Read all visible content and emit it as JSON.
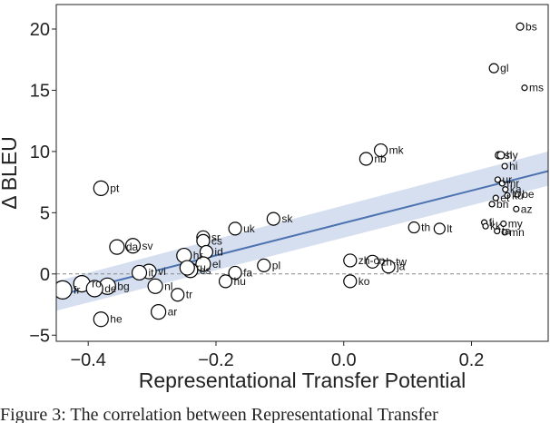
{
  "chart_data": {
    "type": "scatter",
    "title": "",
    "xlabel": "Representational Transfer Potential",
    "ylabel": "Δ BLEU",
    "xlim": [
      -0.45,
      0.32
    ],
    "ylim": [
      -5.5,
      22
    ],
    "xticks": [
      -0.4,
      -0.2,
      0.0,
      0.2
    ],
    "xtick_labels": [
      "−0.4",
      "−0.2",
      "0.0",
      "0.2"
    ],
    "yticks": [
      -5,
      0,
      5,
      10,
      15,
      20
    ],
    "ytick_labels": [
      "−5",
      "0",
      "5",
      "10",
      "15",
      "20"
    ],
    "grid": false,
    "zero_line": 0,
    "points": [
      {
        "label": "bs",
        "x": 0.276,
        "y": 20.2,
        "size": 4
      },
      {
        "label": "gl",
        "x": 0.235,
        "y": 16.8,
        "size": 5
      },
      {
        "label": "ms",
        "x": 0.283,
        "y": 15.2,
        "size": 3
      },
      {
        "label": "mk",
        "x": 0.058,
        "y": 10.1,
        "size": 7
      },
      {
        "label": "nb",
        "x": 0.035,
        "y": 9.4,
        "size": 7
      },
      {
        "label": "sl",
        "x": 0.243,
        "y": 9.7,
        "size": 4
      },
      {
        "label": "hy",
        "x": 0.246,
        "y": 9.7,
        "size": 4
      },
      {
        "label": "hi",
        "x": 0.252,
        "y": 8.8,
        "size": 3
      },
      {
        "label": "ur",
        "x": 0.241,
        "y": 7.7,
        "size": 3
      },
      {
        "label": "mr",
        "x": 0.248,
        "y": 7.4,
        "size": 3
      },
      {
        "label": "ka",
        "x": 0.253,
        "y": 6.9,
        "size": 3
      },
      {
        "label": "be",
        "x": 0.272,
        "y": 6.5,
        "size": 3
      },
      {
        "label": "ku",
        "x": 0.256,
        "y": 6.4,
        "size": 3
      },
      {
        "label": "et",
        "x": 0.238,
        "y": 6.2,
        "size": 3
      },
      {
        "label": "az",
        "x": 0.27,
        "y": 5.3,
        "size": 3
      },
      {
        "label": "bn",
        "x": 0.232,
        "y": 5.7,
        "size": 3
      },
      {
        "label": "fi",
        "x": 0.22,
        "y": 4.2,
        "size": 3
      },
      {
        "label": "kk",
        "x": 0.222,
        "y": 3.9,
        "size": 3
      },
      {
        "label": "my",
        "x": 0.25,
        "y": 4.1,
        "size": 3
      },
      {
        "label": "ta",
        "x": 0.24,
        "y": 3.5,
        "size": 3
      },
      {
        "label": "mn",
        "x": 0.252,
        "y": 3.4,
        "size": 3
      },
      {
        "label": "th",
        "x": 0.11,
        "y": 3.8,
        "size": 6
      },
      {
        "label": "lt",
        "x": 0.15,
        "y": 3.7,
        "size": 6
      },
      {
        "label": "zh-cn",
        "x": 0.01,
        "y": 1.1,
        "size": 7
      },
      {
        "label": "zh-tw",
        "x": 0.045,
        "y": 1.0,
        "size": 7
      },
      {
        "label": "ja",
        "x": 0.07,
        "y": 0.6,
        "size": 7
      },
      {
        "label": "ko",
        "x": 0.01,
        "y": -0.6,
        "size": 7
      },
      {
        "label": "pl",
        "x": -0.125,
        "y": 0.7,
        "size": 7
      },
      {
        "label": "sk",
        "x": -0.11,
        "y": 4.5,
        "size": 7
      },
      {
        "label": "uk",
        "x": -0.17,
        "y": 3.7,
        "size": 7
      },
      {
        "label": "fa",
        "x": -0.17,
        "y": 0.1,
        "size": 7
      },
      {
        "label": "hu",
        "x": -0.185,
        "y": -0.6,
        "size": 7
      },
      {
        "label": "sr",
        "x": -0.22,
        "y": 3.0,
        "size": 7
      },
      {
        "label": "cs",
        "x": -0.22,
        "y": 2.7,
        "size": 7
      },
      {
        "label": "id",
        "x": -0.215,
        "y": 1.8,
        "size": 7
      },
      {
        "label": "hr",
        "x": -0.25,
        "y": 1.5,
        "size": 8
      },
      {
        "label": "el",
        "x": -0.22,
        "y": 0.8,
        "size": 8
      },
      {
        "label": "es",
        "x": -0.24,
        "y": 0.3,
        "size": 8
      },
      {
        "label": "ru",
        "x": -0.245,
        "y": 0.5,
        "size": 8
      },
      {
        "label": "tr",
        "x": -0.26,
        "y": -1.7,
        "size": 7
      },
      {
        "label": "vi",
        "x": -0.305,
        "y": 0.2,
        "size": 8
      },
      {
        "label": "it",
        "x": -0.32,
        "y": 0.1,
        "size": 8
      },
      {
        "label": "nl",
        "x": -0.295,
        "y": -1.0,
        "size": 8
      },
      {
        "label": "ar",
        "x": -0.29,
        "y": -3.1,
        "size": 8
      },
      {
        "label": "sv",
        "x": -0.33,
        "y": 2.3,
        "size": 8
      },
      {
        "label": "da",
        "x": -0.355,
        "y": 2.2,
        "size": 8
      },
      {
        "label": "pt",
        "x": -0.38,
        "y": 7.0,
        "size": 8
      },
      {
        "label": "ro",
        "x": -0.41,
        "y": -0.8,
        "size": 9
      },
      {
        "label": "bg",
        "x": -0.37,
        "y": -1.0,
        "size": 9
      },
      {
        "label": "de",
        "x": -0.39,
        "y": -1.2,
        "size": 9
      },
      {
        "label": "fr",
        "x": -0.44,
        "y": -1.3,
        "size": 10
      },
      {
        "label": "he",
        "x": -0.38,
        "y": -3.7,
        "size": 8
      }
    ],
    "regression": {
      "x": [
        -0.45,
        0.32
      ],
      "y": [
        -1.8,
        8.4
      ],
      "band_lower": [
        -3.0,
        7.2
      ],
      "band_upper": [
        -0.6,
        10.0
      ]
    },
    "colors": {
      "line": "#4c72b0",
      "band": "#c7d4ea",
      "marker_edge": "#000000",
      "zero_line": "#888888"
    }
  },
  "caption": "Figure 3: The correlation between Representational Transfer"
}
